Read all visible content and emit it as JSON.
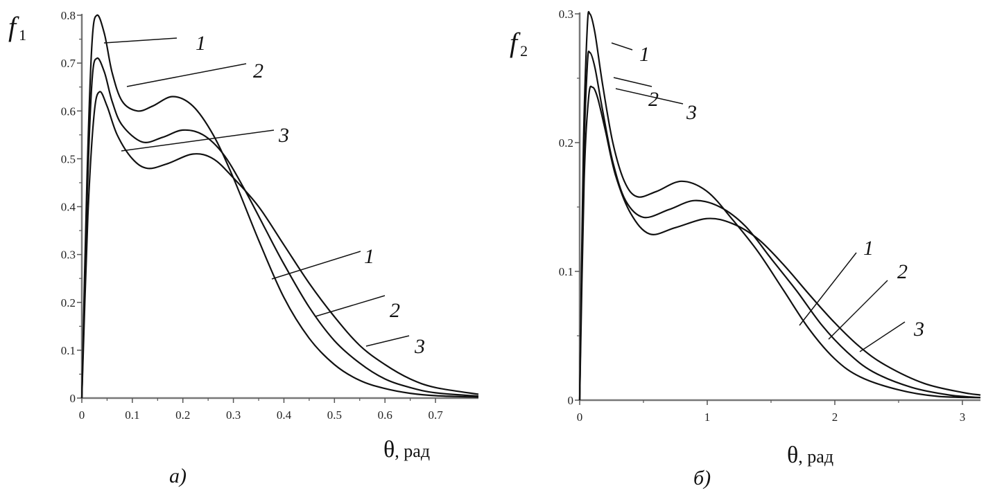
{
  "chart_data": [
    {
      "type": "line",
      "caption": "а)",
      "ylabel": "f",
      "ylabel_subscript": "1",
      "xlabel": "θ",
      "xlabel_unit": ", рад",
      "xlim": [
        0,
        0.785
      ],
      "ylim": [
        0,
        0.8
      ],
      "xticks": [
        "0",
        "0.1",
        "0.2",
        "0.3",
        "0.4",
        "0.5",
        "0.6",
        "0.7"
      ],
      "yticks": [
        "0",
        "0.1",
        "0.2",
        "0.3",
        "0.4",
        "0.5",
        "0.6",
        "0.7",
        "0.8"
      ],
      "grid": false,
      "line_color": "#111111",
      "series": [
        {
          "name": "1",
          "x": [
            0,
            0.01,
            0.02,
            0.03,
            0.045,
            0.06,
            0.08,
            0.11,
            0.14,
            0.18,
            0.22,
            0.26,
            0.3,
            0.35,
            0.4,
            0.45,
            0.5,
            0.55,
            0.6,
            0.65,
            0.7,
            0.785
          ],
          "y": [
            0,
            0.45,
            0.74,
            0.8,
            0.76,
            0.68,
            0.62,
            0.6,
            0.61,
            0.63,
            0.61,
            0.55,
            0.46,
            0.33,
            0.21,
            0.125,
            0.07,
            0.037,
            0.02,
            0.01,
            0.005,
            0.002
          ]
        },
        {
          "name": "2",
          "x": [
            0,
            0.01,
            0.02,
            0.03,
            0.045,
            0.06,
            0.08,
            0.12,
            0.16,
            0.2,
            0.24,
            0.28,
            0.32,
            0.36,
            0.4,
            0.45,
            0.5,
            0.55,
            0.6,
            0.65,
            0.7,
            0.785
          ],
          "y": [
            0,
            0.4,
            0.66,
            0.71,
            0.68,
            0.62,
            0.57,
            0.535,
            0.545,
            0.56,
            0.55,
            0.51,
            0.44,
            0.36,
            0.28,
            0.19,
            0.12,
            0.073,
            0.04,
            0.022,
            0.011,
            0.004
          ]
        },
        {
          "name": "3",
          "x": [
            0,
            0.012,
            0.024,
            0.035,
            0.05,
            0.07,
            0.1,
            0.13,
            0.17,
            0.22,
            0.26,
            0.3,
            0.35,
            0.4,
            0.45,
            0.5,
            0.55,
            0.6,
            0.65,
            0.7,
            0.785
          ],
          "y": [
            0,
            0.38,
            0.59,
            0.64,
            0.61,
            0.55,
            0.5,
            0.48,
            0.49,
            0.51,
            0.5,
            0.46,
            0.4,
            0.32,
            0.24,
            0.17,
            0.11,
            0.07,
            0.04,
            0.022,
            0.008
          ]
        }
      ]
    },
    {
      "type": "line",
      "caption": "б)",
      "ylabel": "f",
      "ylabel_subscript": "2",
      "xlabel": "θ",
      "xlabel_unit": ", рад",
      "xlim": [
        0,
        3.1416
      ],
      "ylim": [
        0,
        0.3
      ],
      "xticks": [
        "0",
        "1",
        "2",
        "3"
      ],
      "yticks": [
        "0",
        "0.1",
        "0.2",
        "0.3"
      ],
      "grid": false,
      "line_color": "#111111",
      "series": [
        {
          "name": "1",
          "x": [
            0,
            0.03,
            0.06,
            0.08,
            0.12,
            0.18,
            0.26,
            0.35,
            0.45,
            0.6,
            0.8,
            1.0,
            1.2,
            1.4,
            1.6,
            1.8,
            2.0,
            2.2,
            2.5,
            2.8,
            3.1416
          ],
          "y": [
            0,
            0.2,
            0.29,
            0.3,
            0.285,
            0.245,
            0.2,
            0.17,
            0.158,
            0.162,
            0.17,
            0.162,
            0.14,
            0.115,
            0.085,
            0.055,
            0.032,
            0.018,
            0.008,
            0.003,
            0.002
          ]
        },
        {
          "name": "2",
          "x": [
            0,
            0.03,
            0.06,
            0.08,
            0.12,
            0.18,
            0.26,
            0.36,
            0.5,
            0.7,
            0.9,
            1.1,
            1.3,
            1.5,
            1.7,
            1.9,
            2.1,
            2.3,
            2.6,
            2.9,
            3.1416
          ],
          "y": [
            0,
            0.18,
            0.26,
            0.27,
            0.258,
            0.225,
            0.185,
            0.155,
            0.142,
            0.148,
            0.155,
            0.15,
            0.135,
            0.11,
            0.085,
            0.058,
            0.037,
            0.022,
            0.01,
            0.004,
            0.002
          ]
        },
        {
          "name": "3",
          "x": [
            0,
            0.035,
            0.07,
            0.1,
            0.14,
            0.2,
            0.28,
            0.4,
            0.55,
            0.75,
            1.0,
            1.2,
            1.4,
            1.6,
            1.8,
            2.0,
            2.2,
            2.4,
            2.7,
            3.0,
            3.1416
          ],
          "y": [
            0,
            0.17,
            0.235,
            0.243,
            0.235,
            0.21,
            0.175,
            0.145,
            0.129,
            0.134,
            0.141,
            0.137,
            0.125,
            0.105,
            0.082,
            0.06,
            0.041,
            0.027,
            0.013,
            0.006,
            0.004
          ]
        }
      ]
    }
  ]
}
